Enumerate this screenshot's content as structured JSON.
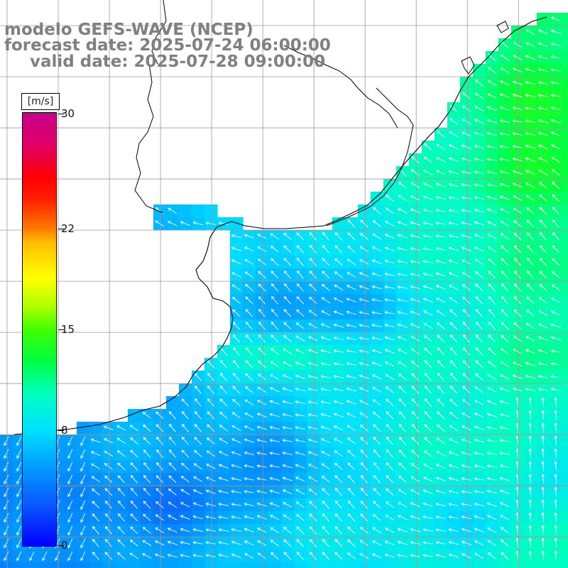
{
  "title": {
    "line1": "modelo GEFS-WAVE (NCEP)",
    "line2": "forecast date: 2025-07-24 06:00:00",
    "line3": "valid date: 2025-07-28 09:00:00"
  },
  "colorbar": {
    "unit": "[m/s]",
    "ticks": [
      "30",
      "22",
      "15",
      "8",
      "0"
    ],
    "tick_values": [
      30,
      22,
      15,
      8,
      0
    ],
    "range": [
      0,
      30
    ],
    "colors": [
      "#0000ff",
      "#00aaff",
      "#00e0ff",
      "#00ff40",
      "#ffff00",
      "#ff7a00",
      "#ff0000",
      "#c8008a"
    ]
  },
  "map": {
    "grid_step_deg": 1,
    "lon_range": [
      -65,
      -54
    ],
    "lat_range": [
      -42,
      -31
    ],
    "land_color": "#ffffff",
    "grid_color": "#9a9a9a",
    "arrow_color": "#ffffff",
    "coastline_color": "#000000"
  }
}
